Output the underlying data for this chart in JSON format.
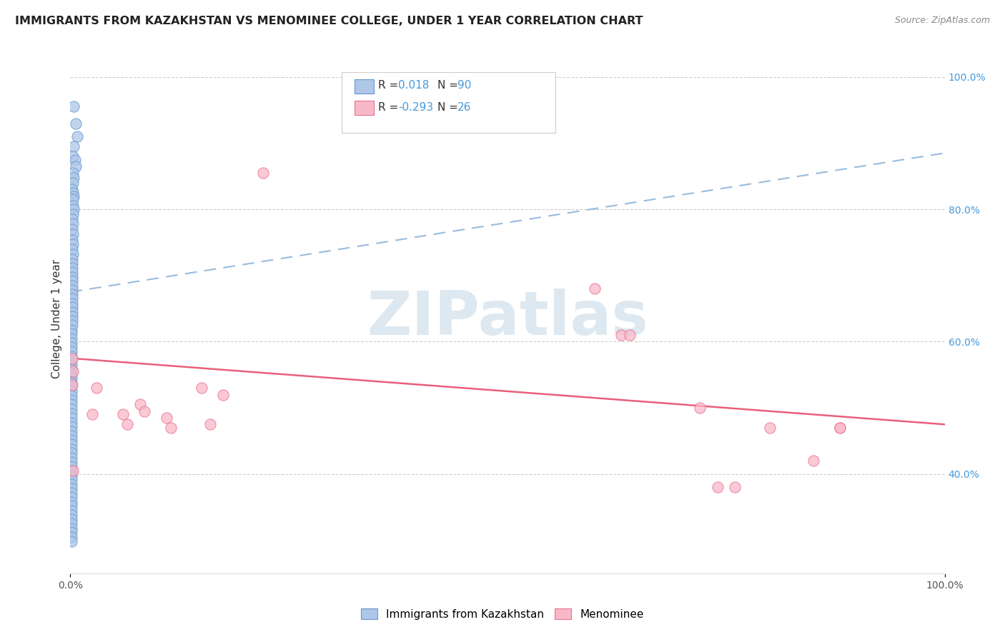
{
  "title": "IMMIGRANTS FROM KAZAKHSTAN VS MENOMINEE COLLEGE, UNDER 1 YEAR CORRELATION CHART",
  "source": "Source: ZipAtlas.com",
  "ylabel": "College, Under 1 year",
  "color_blue_fill": "#aec6e8",
  "color_blue_edge": "#6699cc",
  "color_pink_fill": "#f9b8c8",
  "color_pink_edge": "#e87090",
  "color_line_blue": "#99bbdd",
  "color_line_pink": "#e8607a",
  "color_text_blue": "#4499dd",
  "color_grid": "#cccccc",
  "watermark_color": "#dde8f0",
  "blue_line_y0": 0.675,
  "blue_line_y1": 0.885,
  "pink_line_y0": 0.575,
  "pink_line_y1": 0.475,
  "right_ytick_vals": [
    0.4,
    0.6,
    0.8,
    1.0
  ],
  "right_ytick_labels": [
    "40.0%",
    "60.0%",
    "80.0%",
    "100.0%"
  ],
  "xlim": [
    0.0,
    1.0
  ],
  "ylim": [
    0.25,
    1.02
  ],
  "blue_scatter_x": [
    0.004,
    0.006,
    0.008,
    0.004,
    0.003,
    0.005,
    0.006,
    0.003,
    0.004,
    0.003,
    0.002,
    0.003,
    0.004,
    0.003,
    0.003,
    0.004,
    0.003,
    0.002,
    0.003,
    0.002,
    0.003,
    0.002,
    0.003,
    0.002,
    0.003,
    0.002,
    0.002,
    0.002,
    0.002,
    0.002,
    0.002,
    0.002,
    0.002,
    0.002,
    0.002,
    0.002,
    0.002,
    0.002,
    0.002,
    0.002,
    0.002,
    0.001,
    0.001,
    0.001,
    0.001,
    0.001,
    0.001,
    0.001,
    0.001,
    0.001,
    0.001,
    0.001,
    0.001,
    0.001,
    0.001,
    0.001,
    0.001,
    0.001,
    0.001,
    0.001,
    0.001,
    0.001,
    0.001,
    0.001,
    0.001,
    0.001,
    0.001,
    0.001,
    0.001,
    0.001,
    0.001,
    0.001,
    0.001,
    0.001,
    0.001,
    0.001,
    0.001,
    0.001,
    0.001,
    0.001,
    0.001,
    0.001,
    0.001,
    0.001,
    0.001,
    0.001,
    0.001,
    0.001,
    0.001,
    0.001
  ],
  "blue_scatter_y": [
    0.955,
    0.93,
    0.91,
    0.895,
    0.88,
    0.875,
    0.865,
    0.855,
    0.848,
    0.84,
    0.83,
    0.825,
    0.82,
    0.815,
    0.805,
    0.8,
    0.792,
    0.785,
    0.778,
    0.77,
    0.762,
    0.754,
    0.747,
    0.74,
    0.732,
    0.725,
    0.718,
    0.712,
    0.705,
    0.698,
    0.692,
    0.685,
    0.678,
    0.672,
    0.665,
    0.658,
    0.652,
    0.645,
    0.638,
    0.632,
    0.625,
    0.618,
    0.612,
    0.605,
    0.598,
    0.592,
    0.585,
    0.578,
    0.572,
    0.565,
    0.558,
    0.552,
    0.545,
    0.538,
    0.532,
    0.525,
    0.518,
    0.512,
    0.505,
    0.498,
    0.492,
    0.485,
    0.478,
    0.472,
    0.465,
    0.458,
    0.452,
    0.445,
    0.438,
    0.432,
    0.425,
    0.418,
    0.412,
    0.405,
    0.398,
    0.392,
    0.385,
    0.378,
    0.372,
    0.365,
    0.358,
    0.352,
    0.345,
    0.338,
    0.332,
    0.325,
    0.318,
    0.312,
    0.305,
    0.298
  ],
  "pink_scatter_x": [
    0.002,
    0.003,
    0.002,
    0.003,
    0.025,
    0.03,
    0.06,
    0.065,
    0.08,
    0.085,
    0.11,
    0.115,
    0.15,
    0.16,
    0.175,
    0.22,
    0.6,
    0.63,
    0.64,
    0.72,
    0.74,
    0.76,
    0.8,
    0.85,
    0.88,
    0.88
  ],
  "pink_scatter_y": [
    0.575,
    0.555,
    0.535,
    0.405,
    0.49,
    0.53,
    0.49,
    0.475,
    0.505,
    0.495,
    0.485,
    0.47,
    0.53,
    0.475,
    0.52,
    0.855,
    0.68,
    0.61,
    0.61,
    0.5,
    0.38,
    0.38,
    0.47,
    0.42,
    0.47,
    0.47
  ]
}
